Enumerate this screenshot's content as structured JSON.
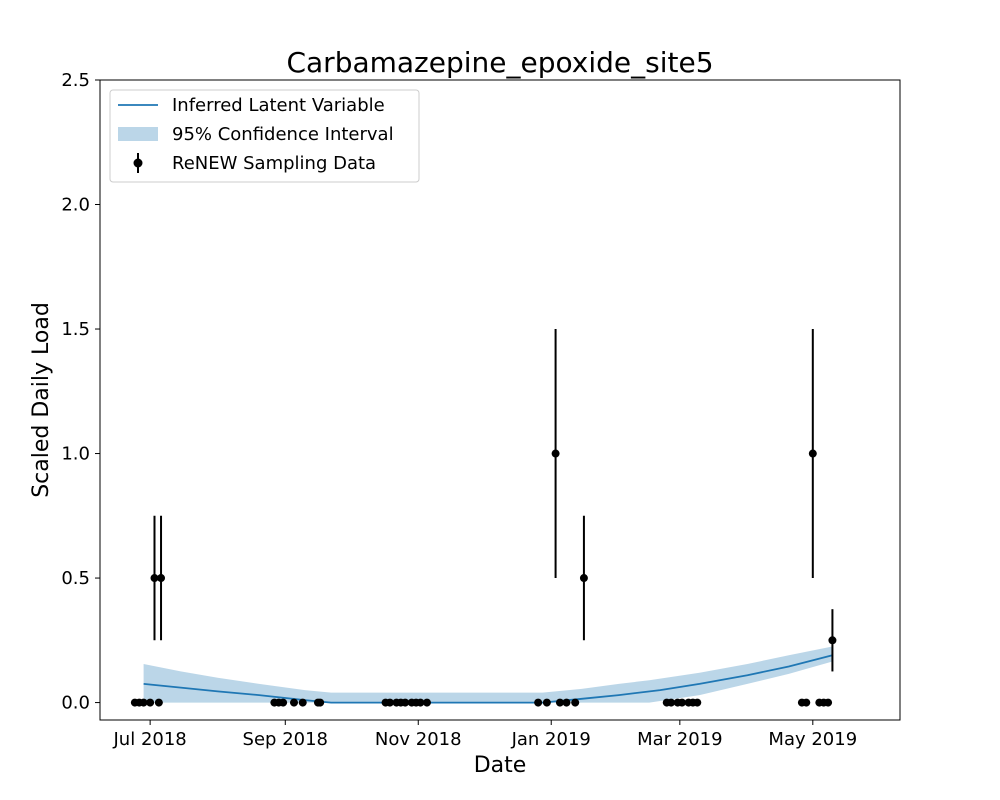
{
  "chart_data": {
    "type": "line",
    "title": "Carbamazepine_epoxide_site5",
    "xlabel": "Date",
    "ylabel": "Scaled Daily Load",
    "x_axis_kind": "date",
    "xlim": [
      "2018-06-08",
      "2019-06-10"
    ],
    "ylim": [
      -0.07,
      2.5
    ],
    "x_ticks": [
      {
        "date": "2018-07-01",
        "label": "Jul 2018"
      },
      {
        "date": "2018-09-01",
        "label": "Sep 2018"
      },
      {
        "date": "2018-11-01",
        "label": "Nov 2018"
      },
      {
        "date": "2019-01-01",
        "label": "Jan 2019"
      },
      {
        "date": "2019-03-01",
        "label": "Mar 2019"
      },
      {
        "date": "2019-05-01",
        "label": "May 2019"
      }
    ],
    "y_ticks": [
      {
        "value": 0.0,
        "label": "0.0"
      },
      {
        "value": 0.5,
        "label": "0.5"
      },
      {
        "value": 1.0,
        "label": "1.0"
      },
      {
        "value": 1.5,
        "label": "1.5"
      },
      {
        "value": 2.0,
        "label": "2.0"
      },
      {
        "value": 2.5,
        "label": "2.5"
      }
    ],
    "grid": false,
    "legend_position": "top-left",
    "colors": {
      "latent": "#1f77b4",
      "ci_fill": "#1f77b4",
      "ci_alpha": 0.3,
      "data": "#000000"
    },
    "series": [
      {
        "name": "Inferred Latent Variable",
        "kind": "line",
        "x": [
          "2018-06-28",
          "2018-07-15",
          "2018-08-01",
          "2018-08-20",
          "2018-09-10",
          "2018-09-22",
          "2018-10-15",
          "2018-11-15",
          "2018-12-15",
          "2018-12-28",
          "2019-01-15",
          "2019-02-01",
          "2019-02-20",
          "2019-03-10",
          "2019-04-01",
          "2019-04-20",
          "2019-05-10"
        ],
        "y": [
          0.075,
          0.06,
          0.045,
          0.03,
          0.01,
          0.0,
          0.0,
          0.0,
          0.0,
          0.0,
          0.015,
          0.03,
          0.05,
          0.075,
          0.11,
          0.145,
          0.19
        ]
      },
      {
        "name": "95% Confidence Interval",
        "kind": "band",
        "x": [
          "2018-06-28",
          "2018-07-15",
          "2018-08-01",
          "2018-08-20",
          "2018-09-10",
          "2018-09-22",
          "2018-10-15",
          "2018-11-15",
          "2018-12-15",
          "2018-12-28",
          "2019-01-15",
          "2019-02-01",
          "2019-02-15",
          "2019-03-10",
          "2019-04-01",
          "2019-04-20",
          "2019-05-10"
        ],
        "lower": [
          0.0,
          0.0,
          0.0,
          0.0,
          0.0,
          0.0,
          0.0,
          0.0,
          0.0,
          0.0,
          0.0,
          0.0,
          0.0,
          0.03,
          0.075,
          0.115,
          0.165
        ],
        "upper": [
          0.155,
          0.125,
          0.1,
          0.075,
          0.05,
          0.04,
          0.04,
          0.04,
          0.04,
          0.04,
          0.055,
          0.075,
          0.09,
          0.12,
          0.155,
          0.19,
          0.225
        ]
      },
      {
        "name": "ReNEW Sampling Data",
        "kind": "errorbar",
        "points": [
          {
            "x": "2018-06-24",
            "y": 0.0
          },
          {
            "x": "2018-06-26",
            "y": 0.0
          },
          {
            "x": "2018-06-28",
            "y": 0.0
          },
          {
            "x": "2018-07-01",
            "y": 0.0
          },
          {
            "x": "2018-07-03",
            "y": 0.5,
            "err": 0.25
          },
          {
            "x": "2018-07-05",
            "y": 0.0
          },
          {
            "x": "2018-07-06",
            "y": 0.5,
            "err": 0.25
          },
          {
            "x": "2018-08-27",
            "y": 0.0
          },
          {
            "x": "2018-08-29",
            "y": 0.0
          },
          {
            "x": "2018-08-31",
            "y": 0.0
          },
          {
            "x": "2018-09-05",
            "y": 0.0
          },
          {
            "x": "2018-09-09",
            "y": 0.0
          },
          {
            "x": "2018-09-16",
            "y": 0.0
          },
          {
            "x": "2018-09-17",
            "y": 0.0
          },
          {
            "x": "2018-10-17",
            "y": 0.0
          },
          {
            "x": "2018-10-19",
            "y": 0.0
          },
          {
            "x": "2018-10-22",
            "y": 0.0
          },
          {
            "x": "2018-10-24",
            "y": 0.0
          },
          {
            "x": "2018-10-26",
            "y": 0.0
          },
          {
            "x": "2018-10-29",
            "y": 0.0
          },
          {
            "x": "2018-10-31",
            "y": 0.0
          },
          {
            "x": "2018-11-02",
            "y": 0.0
          },
          {
            "x": "2018-11-05",
            "y": 0.0
          },
          {
            "x": "2018-12-26",
            "y": 0.0
          },
          {
            "x": "2018-12-30",
            "y": 0.0
          },
          {
            "x": "2019-01-03",
            "y": 1.0,
            "err": 0.5
          },
          {
            "x": "2019-01-05",
            "y": 0.0
          },
          {
            "x": "2019-01-08",
            "y": 0.0
          },
          {
            "x": "2019-01-12",
            "y": 0.0
          },
          {
            "x": "2019-01-16",
            "y": 0.5,
            "err": 0.25
          },
          {
            "x": "2019-02-23",
            "y": 0.0
          },
          {
            "x": "2019-02-25",
            "y": 0.0
          },
          {
            "x": "2019-02-28",
            "y": 0.0
          },
          {
            "x": "2019-03-02",
            "y": 0.0
          },
          {
            "x": "2019-03-05",
            "y": 0.0
          },
          {
            "x": "2019-03-07",
            "y": 0.0
          },
          {
            "x": "2019-03-09",
            "y": 0.0
          },
          {
            "x": "2019-04-26",
            "y": 0.0
          },
          {
            "x": "2019-04-28",
            "y": 0.0
          },
          {
            "x": "2019-05-01",
            "y": 1.0,
            "err": 0.5
          },
          {
            "x": "2019-05-04",
            "y": 0.0
          },
          {
            "x": "2019-05-06",
            "y": 0.0
          },
          {
            "x": "2019-05-08",
            "y": 0.0
          },
          {
            "x": "2019-05-10",
            "y": 0.25,
            "err": 0.125
          }
        ]
      }
    ]
  }
}
